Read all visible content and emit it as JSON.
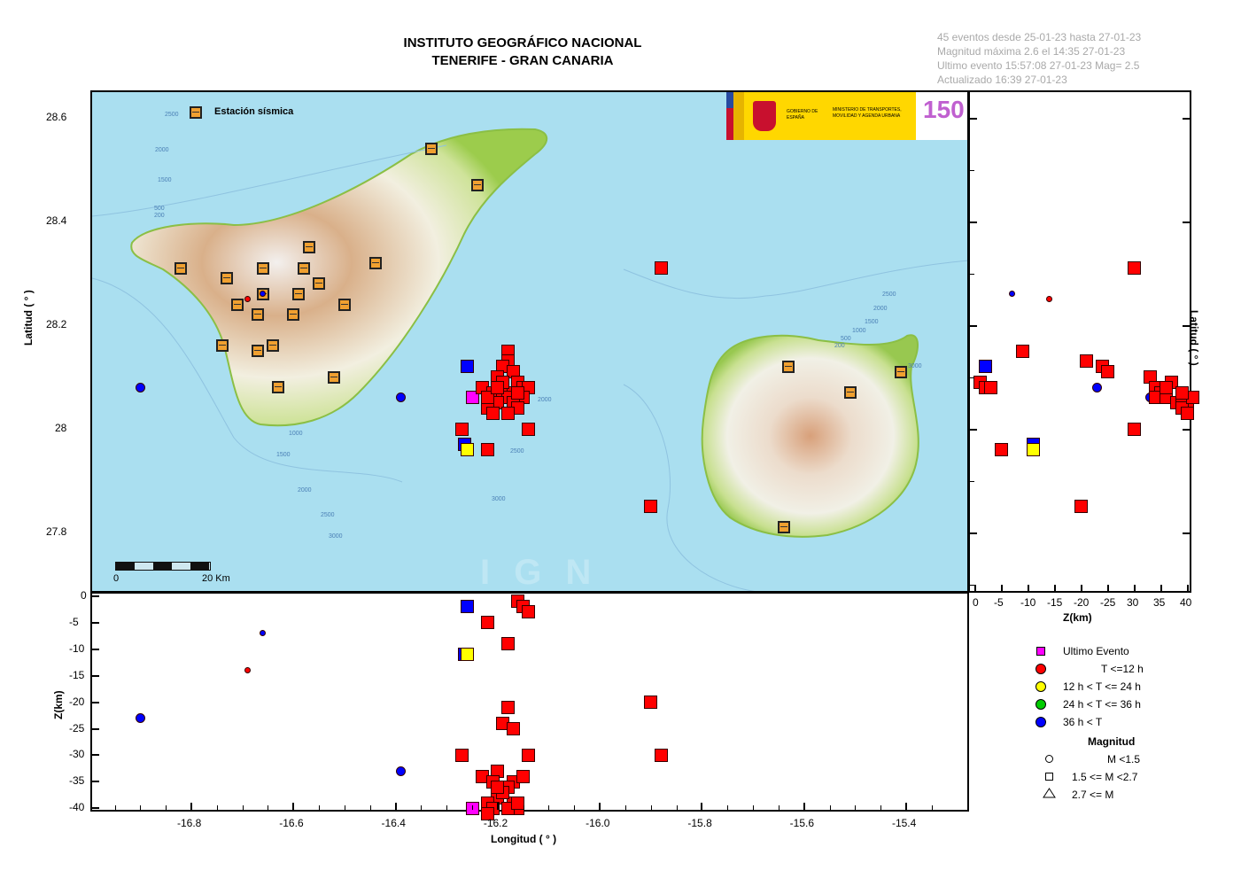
{
  "header": {
    "title_line1": "INSTITUTO GEOGRÁFICO NACIONAL",
    "title_line2": "TENERIFE - GRAN CANARIA"
  },
  "info": {
    "line1": "45 eventos desde 25-01-23 hasta 27-01-23",
    "line2": "Magnitud máxima 2.6 el 14:35 27-01-23",
    "line3": "Ultimo evento   15:57:08 27-01-23  Mag= 2.5",
    "line4": "Actualizado   16:39  27-01-23"
  },
  "logos": {
    "gobierno": "GOBIERNO DE ESPAÑA",
    "ministerio": "MINISTERIO DE TRANSPORTES, MOVILIDAD Y AGENDA URBANA",
    "ign_anniversary": "150"
  },
  "map": {
    "station_legend": "Estación sísmica",
    "scale_start": "0",
    "scale_end": "20 Km",
    "watermark": "I G N",
    "islands": [
      "Tenerife",
      "Gran Canaria"
    ],
    "contour_labels": [
      "2500",
      "2000",
      "1500",
      "500",
      "200",
      "1000",
      "1500",
      "2000",
      "2500",
      "3000",
      "2000",
      "2500",
      "3000",
      "2500",
      "2000",
      "1500",
      "1000",
      "500",
      "200"
    ]
  },
  "chart_data": {
    "type": "scatter",
    "title": "INSTITUTO GEOGRÁFICO NACIONAL - TENERIFE - GRAN CANARIA",
    "subtitle": "45 eventos desde 25-01-23 hasta 27-01-23",
    "panels": {
      "map": {
        "xlabel": "Longitud ( ° )",
        "ylabel": "Latitud ( ° )",
        "xlim": [
          -16.99,
          -15.28
        ],
        "ylim": [
          27.68,
          28.65
        ]
      },
      "depth_vs_lon": {
        "xlabel": "Longitud ( ° )",
        "ylabel": "Z(km)",
        "ylim": [
          -41,
          0
        ]
      },
      "lat_vs_depth": {
        "xlabel": "Z(km)",
        "ylabel": "Latitud ( ° )",
        "xlim": [
          0,
          41
        ]
      }
    },
    "x_ticks": [
      "-16.8",
      "-16.6",
      "-16.4",
      "-16.2",
      "-16.0",
      "-15.8",
      "-15.6",
      "-15.4"
    ],
    "y_ticks": [
      "28.6",
      "28.4",
      "28.2",
      "28",
      "27.8"
    ],
    "z_ticks_depth": [
      "0",
      "-5",
      "-10",
      "-15",
      "-20",
      "-25",
      "-30",
      "-35",
      "-40"
    ],
    "z_ticks_side": [
      "0",
      "-5",
      "-10",
      "-15",
      "-20",
      "-25",
      "30",
      "35",
      "40"
    ],
    "legend": {
      "color": [
        {
          "label": "Ultimo Evento",
          "color": "#ff00ff",
          "shape": "square"
        },
        {
          "label": "T <=12 h",
          "color": "#ff0000",
          "shape": "circle"
        },
        {
          "label": "12 h  < T <= 24 h",
          "color": "#ffff00",
          "shape": "circle"
        },
        {
          "label": "24 h  < T <= 36 h",
          "color": "#00cc00",
          "shape": "circle"
        },
        {
          "label": "36 h <  T",
          "color": "#0000ff",
          "shape": "circle"
        }
      ],
      "magnitude_title": "Magnitud",
      "magnitude": [
        {
          "label": "M <1.5",
          "shape": "circle"
        },
        {
          "label": "1.5 <= M <2.7",
          "shape": "square"
        },
        {
          "label": "2.7 <= M",
          "shape": "triangle"
        }
      ]
    },
    "events": [
      {
        "lon": -16.9,
        "lat": 28.08,
        "z": 23,
        "color": "blue",
        "shape": "circle"
      },
      {
        "lon": -16.66,
        "lat": 28.26,
        "z": 7,
        "color": "blue",
        "shape": "circle",
        "small": true
      },
      {
        "lon": -16.69,
        "lat": 28.25,
        "z": 14,
        "color": "red",
        "shape": "circle",
        "small": true
      },
      {
        "lon": -16.39,
        "lat": 28.06,
        "z": 33,
        "color": "blue",
        "shape": "circle"
      },
      {
        "lon": -16.26,
        "lat": 28.12,
        "z": 2,
        "color": "blue",
        "shape": "square"
      },
      {
        "lon": -16.265,
        "lat": 27.97,
        "z": 11,
        "color": "blue",
        "shape": "square"
      },
      {
        "lon": -16.26,
        "lat": 27.96,
        "z": 11,
        "color": "yellow",
        "shape": "square"
      },
      {
        "lon": -16.25,
        "lat": 28.06,
        "z": 40,
        "color": "magenta",
        "shape": "square"
      },
      {
        "lon": -16.27,
        "lat": 28.0,
        "z": 30,
        "color": "red",
        "shape": "square"
      },
      {
        "lon": -16.22,
        "lat": 27.96,
        "z": 5,
        "color": "red",
        "shape": "square"
      },
      {
        "lon": -16.14,
        "lat": 28.0,
        "z": 30,
        "color": "red",
        "shape": "square"
      },
      {
        "lon": -16.18,
        "lat": 28.15,
        "z": 9,
        "color": "red",
        "shape": "square"
      },
      {
        "lon": -16.18,
        "lat": 28.13,
        "z": 21,
        "color": "red",
        "shape": "square"
      },
      {
        "lon": -16.19,
        "lat": 28.12,
        "z": 24,
        "color": "red",
        "shape": "square"
      },
      {
        "lon": -16.17,
        "lat": 28.11,
        "z": 25,
        "color": "red",
        "shape": "square"
      },
      {
        "lon": -16.2,
        "lat": 28.1,
        "z": 33,
        "color": "red",
        "shape": "square"
      },
      {
        "lon": -16.16,
        "lat": 28.09,
        "z": 1,
        "color": "red",
        "shape": "square"
      },
      {
        "lon": -16.15,
        "lat": 28.08,
        "z": 2,
        "color": "red",
        "shape": "square"
      },
      {
        "lon": -16.14,
        "lat": 28.08,
        "z": 3,
        "color": "red",
        "shape": "square"
      },
      {
        "lon": -16.23,
        "lat": 28.08,
        "z": 34,
        "color": "red",
        "shape": "square"
      },
      {
        "lon": -16.21,
        "lat": 28.07,
        "z": 35,
        "color": "red",
        "shape": "square"
      },
      {
        "lon": -16.19,
        "lat": 28.07,
        "z": 36,
        "color": "red",
        "shape": "square"
      },
      {
        "lon": -16.17,
        "lat": 28.07,
        "z": 35,
        "color": "red",
        "shape": "square"
      },
      {
        "lon": -16.15,
        "lat": 28.06,
        "z": 34,
        "color": "red",
        "shape": "square"
      },
      {
        "lon": -16.18,
        "lat": 28.06,
        "z": 36,
        "color": "red",
        "shape": "square"
      },
      {
        "lon": -16.2,
        "lat": 28.05,
        "z": 38,
        "color": "red",
        "shape": "square"
      },
      {
        "lon": -16.17,
        "lat": 28.05,
        "z": 39,
        "color": "red",
        "shape": "square"
      },
      {
        "lon": -16.16,
        "lat": 28.04,
        "z": 40,
        "color": "red",
        "shape": "square"
      },
      {
        "lon": -16.22,
        "lat": 28.04,
        "z": 39,
        "color": "red",
        "shape": "square"
      },
      {
        "lon": -16.18,
        "lat": 28.03,
        "z": 40,
        "color": "red",
        "shape": "square"
      },
      {
        "lon": -16.21,
        "lat": 28.03,
        "z": 40,
        "color": "red",
        "shape": "square"
      },
      {
        "lon": -16.19,
        "lat": 28.09,
        "z": 37,
        "color": "red",
        "shape": "square"
      },
      {
        "lon": -16.22,
        "lat": 28.06,
        "z": 41,
        "color": "red",
        "shape": "square"
      },
      {
        "lon": -16.2,
        "lat": 28.08,
        "z": 36,
        "color": "red",
        "shape": "square"
      },
      {
        "lon": -16.16,
        "lat": 28.07,
        "z": 39,
        "color": "red",
        "shape": "square"
      },
      {
        "lon": -15.88,
        "lat": 28.31,
        "z": 30,
        "color": "red",
        "shape": "square"
      },
      {
        "lon": -15.9,
        "lat": 27.85,
        "z": 20,
        "color": "red",
        "shape": "square"
      }
    ]
  },
  "stations": [
    {
      "lon": -16.33,
      "lat": 28.54
    },
    {
      "lon": -16.24,
      "lat": 28.47
    },
    {
      "lon": -16.82,
      "lat": 28.31
    },
    {
      "lon": -16.73,
      "lat": 28.29
    },
    {
      "lon": -16.71,
      "lat": 28.24
    },
    {
      "lon": -16.66,
      "lat": 28.31
    },
    {
      "lon": -16.57,
      "lat": 28.35
    },
    {
      "lon": -16.58,
      "lat": 28.31
    },
    {
      "lon": -16.55,
      "lat": 28.28
    },
    {
      "lon": -16.59,
      "lat": 28.26
    },
    {
      "lon": -16.66,
      "lat": 28.26
    },
    {
      "lon": -16.67,
      "lat": 28.22
    },
    {
      "lon": -16.6,
      "lat": 28.22
    },
    {
      "lon": -16.5,
      "lat": 28.24
    },
    {
      "lon": -16.44,
      "lat": 28.32
    },
    {
      "lon": -16.74,
      "lat": 28.16
    },
    {
      "lon": -16.67,
      "lat": 28.15
    },
    {
      "lon": -16.64,
      "lat": 28.16
    },
    {
      "lon": -16.52,
      "lat": 28.1
    },
    {
      "lon": -16.63,
      "lat": 28.08
    },
    {
      "lon": -15.63,
      "lat": 28.12
    },
    {
      "lon": -15.51,
      "lat": 28.07
    },
    {
      "lon": -15.41,
      "lat": 28.11
    },
    {
      "lon": -15.64,
      "lat": 27.81
    }
  ],
  "colors": {
    "red": "#ff0000",
    "blue": "#0000ff",
    "yellow": "#ffff00",
    "magenta": "#ff00ff",
    "green": "#00cc00",
    "sea": "#aadff0",
    "station": "#f0a030"
  }
}
